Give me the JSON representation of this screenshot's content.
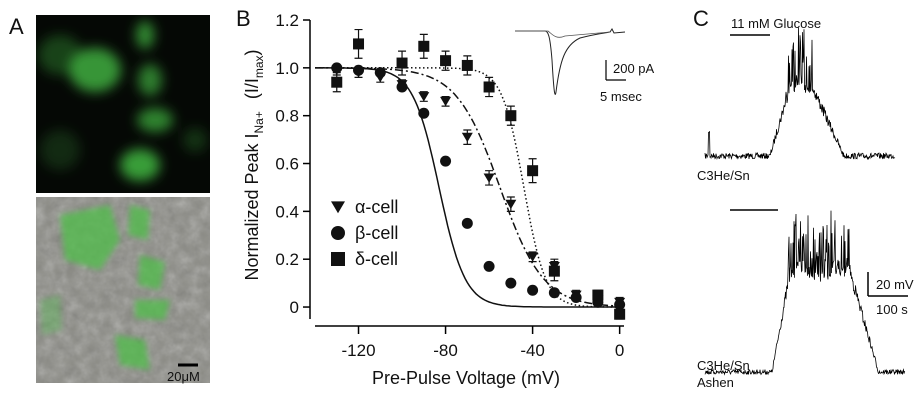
{
  "panel_a": {
    "label": "A",
    "scale_bar": "20μM"
  },
  "chart_data": {
    "type": "scatter",
    "panel_label": "B",
    "x_label": "Pre-Pulse Voltage (mV)",
    "y_label": [
      "Normalized Peak I",
      "Na+",
      "(I/I",
      "max",
      ")"
    ],
    "xlim": [
      -140,
      2
    ],
    "ylim": [
      -0.05,
      1.2
    ],
    "xticks": [
      -120,
      -80,
      -40,
      0
    ],
    "yticks": [
      0,
      0.2,
      0.4,
      0.6,
      0.8,
      {
        "value": 1,
        "label": "1.0"
      },
      1.2
    ],
    "inset_scale": {
      "current": "200 pA",
      "time": "5 msec"
    },
    "series": [
      {
        "name": "α-cell",
        "marker": "triangle-down",
        "color": "#111111",
        "fit": {
          "v_half": -55,
          "k": 10,
          "style": "dashdot"
        },
        "x": [
          -130,
          -120,
          -110,
          -100,
          -90,
          -80,
          -70,
          -60,
          -50,
          -40,
          -30,
          -20,
          -10,
          0
        ],
        "values": [
          0.99,
          0.98,
          0.96,
          0.93,
          0.88,
          0.86,
          0.71,
          0.54,
          0.43,
          0.21,
          0.17,
          0.05,
          0.03,
          0.02
        ],
        "errors": [
          0.02,
          0.02,
          0.02,
          0.02,
          0.02,
          0.02,
          0.03,
          0.03,
          0.03,
          0.02,
          0.03,
          0.02,
          0.02,
          0.02
        ]
      },
      {
        "name": "β-cell",
        "marker": "circle",
        "color": "#111111",
        "fit": {
          "v_half": -83,
          "k": 6,
          "style": "solid"
        },
        "x": [
          -130,
          -120,
          -110,
          -100,
          -90,
          -80,
          -70,
          -60,
          -50,
          -40,
          -30,
          -20,
          -10,
          0
        ],
        "values": [
          1.0,
          0.99,
          0.98,
          0.92,
          0.81,
          0.61,
          0.35,
          0.17,
          0.1,
          0.07,
          0.06,
          0.04,
          0.02,
          0.01
        ]
      },
      {
        "name": "δ-cell",
        "marker": "square",
        "color": "#111111",
        "fit": {
          "v_half": -44,
          "k": 5,
          "style": "dotted"
        },
        "x": [
          -130,
          -120,
          -100,
          -90,
          -80,
          -70,
          -60,
          -50,
          -40,
          -30,
          -10,
          0
        ],
        "values": [
          0.94,
          1.1,
          1.02,
          1.09,
          1.03,
          1.01,
          0.92,
          0.8,
          0.57,
          0.15,
          0.05,
          -0.03
        ],
        "errors": [
          0.04,
          0.06,
          0.05,
          0.05,
          0.04,
          0.04,
          0.04,
          0.04,
          0.05,
          0.04,
          0.02,
          0.02
        ]
      }
    ]
  },
  "panel_c": {
    "label": "C",
    "stimulus": "11 mM Glucose",
    "traces": [
      {
        "label": [
          "C3He/Sn"
        ]
      },
      {
        "label": [
          "C3He/Sn",
          "Ashen"
        ]
      }
    ],
    "scale": {
      "voltage": "20 mV",
      "time": "100 s"
    }
  }
}
